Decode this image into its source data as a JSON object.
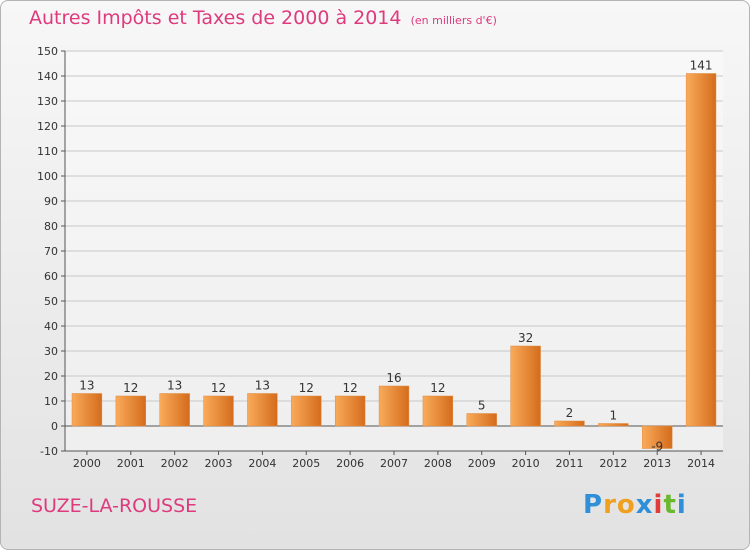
{
  "header": {
    "title": "Autres Impôts et Taxes de 2000 à 2014",
    "unit": "(en milliers d'€)"
  },
  "footer": {
    "place": "SUZE-LA-ROUSSE"
  },
  "logo": {
    "letters": [
      "P",
      "r",
      "o",
      "x",
      "i",
      "t",
      "i"
    ],
    "colors": [
      "#2f8fd8",
      "#f0a020",
      "#f0a020",
      "#2f8fd8",
      "#e03c3c",
      "#6ab82e",
      "#2f8fd8"
    ]
  },
  "colors": {
    "bar_light": "#f9ab5a",
    "bar_dark": "#d46c1c",
    "title": "#de3a7d"
  },
  "chart_data": {
    "type": "bar",
    "title": "Autres Impôts et Taxes de 2000 à 2014",
    "subtitle": "(en milliers d'€)",
    "categories": [
      "2000",
      "2001",
      "2002",
      "2003",
      "2004",
      "2005",
      "2006",
      "2007",
      "2008",
      "2009",
      "2010",
      "2011",
      "2012",
      "2013",
      "2014"
    ],
    "values": [
      13,
      12,
      13,
      12,
      13,
      12,
      12,
      16,
      12,
      5,
      32,
      2,
      1,
      -9,
      141
    ],
    "labels": [
      "13",
      "12",
      "13",
      "12",
      "13",
      "12",
      "12",
      "16",
      "12",
      "5",
      "32",
      "2",
      "1",
      "-9",
      "141"
    ],
    "ylim": [
      -10,
      150
    ],
    "yticks": [
      -10,
      0,
      10,
      20,
      30,
      40,
      50,
      60,
      70,
      80,
      90,
      100,
      110,
      120,
      130,
      140,
      150
    ],
    "grid": true
  }
}
